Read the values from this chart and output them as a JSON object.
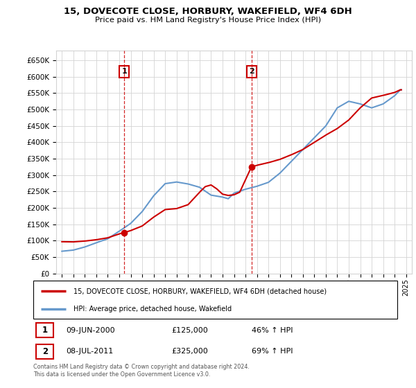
{
  "title": "15, DOVECOTE CLOSE, HORBURY, WAKEFIELD, WF4 6DH",
  "subtitle": "Price paid vs. HM Land Registry's House Price Index (HPI)",
  "property_label": "15, DOVECOTE CLOSE, HORBURY, WAKEFIELD, WF4 6DH (detached house)",
  "hpi_label": "HPI: Average price, detached house, Wakefield",
  "annotation1_num": "1",
  "annotation1_date": "09-JUN-2000",
  "annotation1_price": "£125,000",
  "annotation1_hpi": "46% ↑ HPI",
  "annotation2_num": "2",
  "annotation2_date": "08-JUL-2011",
  "annotation2_price": "£325,000",
  "annotation2_hpi": "69% ↑ HPI",
  "footer": "Contains HM Land Registry data © Crown copyright and database right 2024.\nThis data is licensed under the Open Government Licence v3.0.",
  "property_color": "#cc0000",
  "hpi_color": "#6699cc",
  "sale1_x": 2000.44,
  "sale1_y": 125000,
  "sale2_x": 2011.52,
  "sale2_y": 325000,
  "ylim": [
    0,
    680000
  ],
  "xlim": [
    1994.5,
    2025.5
  ],
  "yticks": [
    0,
    50000,
    100000,
    150000,
    200000,
    250000,
    300000,
    350000,
    400000,
    450000,
    500000,
    550000,
    600000,
    650000
  ],
  "xticks": [
    1995,
    1996,
    1997,
    1998,
    1999,
    2000,
    2001,
    2002,
    2003,
    2004,
    2005,
    2006,
    2007,
    2008,
    2009,
    2010,
    2011,
    2012,
    2013,
    2014,
    2015,
    2016,
    2017,
    2018,
    2019,
    2020,
    2021,
    2022,
    2023,
    2024,
    2025
  ]
}
